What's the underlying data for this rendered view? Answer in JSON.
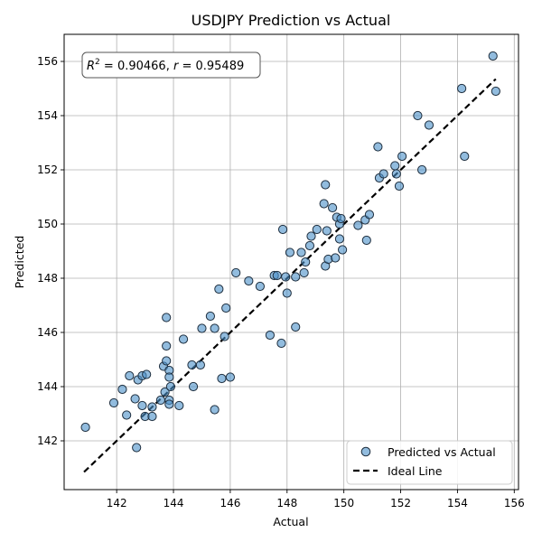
{
  "chart_data": {
    "type": "scatter",
    "title": "USDJPY Prediction vs Actual",
    "xlabel": "Actual",
    "ylabel": "Predicted",
    "xlim": [
      140.15,
      156.15
    ],
    "ylim": [
      140.2,
      157.0
    ],
    "xticks": [
      142,
      144,
      146,
      148,
      150,
      152,
      154,
      156
    ],
    "yticks": [
      142,
      144,
      146,
      148,
      150,
      152,
      154,
      156
    ],
    "grid": true,
    "legend_position": "lower-right",
    "annotation": {
      "r2_label": "R",
      "r2_sup": "2",
      "r2_value": " = 0.90466, ",
      "r_label": "r",
      "r_value": " = 0.95489"
    },
    "series": [
      {
        "name": "Predicted vs Actual",
        "kind": "scatter",
        "color": "#4a90c8",
        "points": [
          [
            140.9,
            142.5
          ],
          [
            141.9,
            143.4
          ],
          [
            142.2,
            143.9
          ],
          [
            142.35,
            142.95
          ],
          [
            142.45,
            144.4
          ],
          [
            142.65,
            143.55
          ],
          [
            142.7,
            141.75
          ],
          [
            142.75,
            144.25
          ],
          [
            142.9,
            144.4
          ],
          [
            142.9,
            143.3
          ],
          [
            143.0,
            142.9
          ],
          [
            143.05,
            144.45
          ],
          [
            143.25,
            142.9
          ],
          [
            143.25,
            143.25
          ],
          [
            143.55,
            143.5
          ],
          [
            143.65,
            144.75
          ],
          [
            143.7,
            143.8
          ],
          [
            143.75,
            146.55
          ],
          [
            143.75,
            145.5
          ],
          [
            143.75,
            144.95
          ],
          [
            143.85,
            144.6
          ],
          [
            143.85,
            144.35
          ],
          [
            143.85,
            143.5
          ],
          [
            143.85,
            143.35
          ],
          [
            143.9,
            144.0
          ],
          [
            144.2,
            143.3
          ],
          [
            144.35,
            145.75
          ],
          [
            144.65,
            144.8
          ],
          [
            144.7,
            144.0
          ],
          [
            144.95,
            144.8
          ],
          [
            145.0,
            146.15
          ],
          [
            145.3,
            146.6
          ],
          [
            145.45,
            146.15
          ],
          [
            145.45,
            143.15
          ],
          [
            145.6,
            147.6
          ],
          [
            145.7,
            144.3
          ],
          [
            145.8,
            145.85
          ],
          [
            145.85,
            146.9
          ],
          [
            146.0,
            144.35
          ],
          [
            146.2,
            148.2
          ],
          [
            146.65,
            147.9
          ],
          [
            147.05,
            147.7
          ],
          [
            147.4,
            145.9
          ],
          [
            147.55,
            148.1
          ],
          [
            147.65,
            148.1
          ],
          [
            147.8,
            145.6
          ],
          [
            147.85,
            149.8
          ],
          [
            147.95,
            148.05
          ],
          [
            148.0,
            147.45
          ],
          [
            148.1,
            148.95
          ],
          [
            148.3,
            148.05
          ],
          [
            148.3,
            146.2
          ],
          [
            148.5,
            148.95
          ],
          [
            148.6,
            148.2
          ],
          [
            148.65,
            148.6
          ],
          [
            148.8,
            149.2
          ],
          [
            148.85,
            149.55
          ],
          [
            149.05,
            149.8
          ],
          [
            149.3,
            150.75
          ],
          [
            149.35,
            151.45
          ],
          [
            149.35,
            148.45
          ],
          [
            149.4,
            149.75
          ],
          [
            149.45,
            148.7
          ],
          [
            149.6,
            150.6
          ],
          [
            149.7,
            148.75
          ],
          [
            149.75,
            150.25
          ],
          [
            149.85,
            150.0
          ],
          [
            149.85,
            149.45
          ],
          [
            149.9,
            150.2
          ],
          [
            149.95,
            149.05
          ],
          [
            150.5,
            149.95
          ],
          [
            150.75,
            150.15
          ],
          [
            150.8,
            149.4
          ],
          [
            150.9,
            150.35
          ],
          [
            151.2,
            152.85
          ],
          [
            151.25,
            151.7
          ],
          [
            151.4,
            151.85
          ],
          [
            151.8,
            152.15
          ],
          [
            151.85,
            151.85
          ],
          [
            151.95,
            151.4
          ],
          [
            152.05,
            152.5
          ],
          [
            152.6,
            154.0
          ],
          [
            152.75,
            152.0
          ],
          [
            153.0,
            153.65
          ],
          [
            154.15,
            155.0
          ],
          [
            154.25,
            152.5
          ],
          [
            155.25,
            156.2
          ],
          [
            155.35,
            154.9
          ]
        ]
      },
      {
        "name": "Ideal Line",
        "kind": "line",
        "color": "#000000",
        "points": [
          [
            140.85,
            140.85
          ],
          [
            155.35,
            155.35
          ]
        ]
      }
    ]
  }
}
